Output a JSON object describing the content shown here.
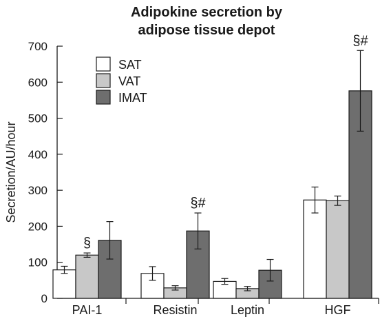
{
  "chart_data": {
    "type": "bar",
    "title": [
      "Adipokine secretion by",
      "adipose tissue depot"
    ],
    "ylabel": "Secretion/AU/hour",
    "ylim": [
      0,
      700
    ],
    "yticks": [
      0,
      100,
      200,
      300,
      400,
      500,
      600,
      700
    ],
    "grid": false,
    "legend_position": "top-left",
    "categories": [
      "PAI-1",
      "Resistin",
      "Leptin",
      "HGF"
    ],
    "series": [
      {
        "name": "SAT",
        "color": "#ffffff",
        "values": [
          79,
          69,
          47,
          273
        ],
        "errors": [
          10,
          19,
          8,
          36
        ]
      },
      {
        "name": "VAT",
        "color": "#c8c8c8",
        "values": [
          120,
          29,
          27,
          271
        ],
        "errors": [
          6,
          6,
          6,
          13
        ]
      },
      {
        "name": "IMAT",
        "color": "#6e6e6e",
        "values": [
          161,
          187,
          78,
          576
        ],
        "errors": [
          52,
          50,
          30,
          112
        ]
      }
    ],
    "annotations": [
      {
        "text": "§",
        "category": "PAI-1",
        "series": "VAT"
      },
      {
        "text": "§#",
        "category": "Resistin",
        "series": "IMAT"
      },
      {
        "text": "§#",
        "category": "HGF",
        "series": "IMAT"
      }
    ]
  }
}
